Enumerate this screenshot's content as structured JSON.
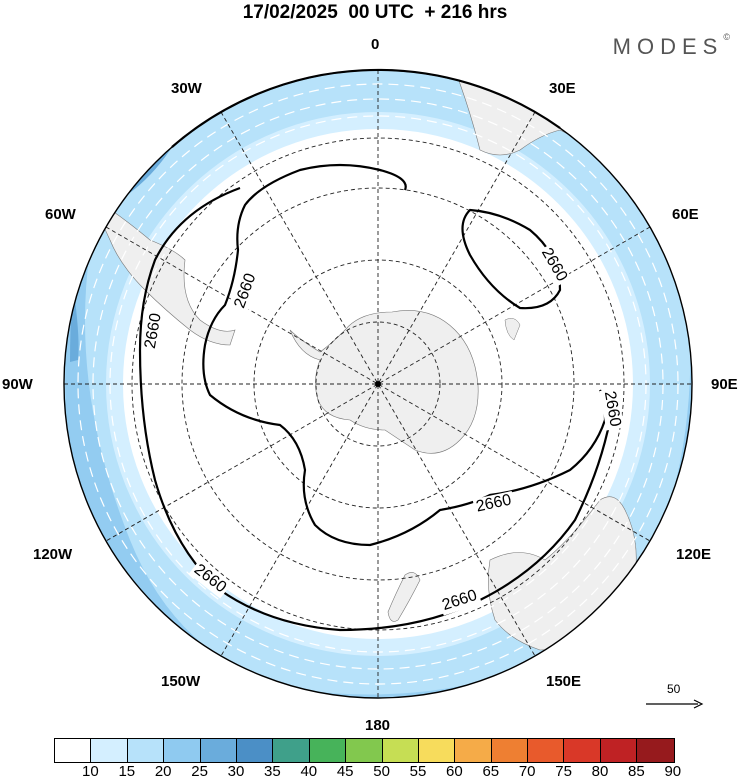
{
  "title": "17/02/2025  00 UTC  + 216 hrs",
  "brand": {
    "text": "MODES",
    "mark": "©"
  },
  "longitude_labels": [
    "0",
    "30E",
    "60E",
    "90E",
    "120E",
    "150E",
    "180",
    "150W",
    "120W",
    "90W",
    "60W",
    "30W"
  ],
  "contours": [
    {
      "value": "2660",
      "labels": [
        "2660",
        "2660",
        "2660",
        "2660",
        "2660",
        "2660",
        "2660"
      ]
    }
  ],
  "reference_vector": {
    "label": "50",
    "icon": "arrow-right-icon"
  },
  "colorbar": {
    "ticks": [
      "10",
      "15",
      "20",
      "25",
      "30",
      "35",
      "40",
      "45",
      "50",
      "55",
      "60",
      "65",
      "70",
      "75",
      "80",
      "85",
      "90"
    ],
    "colors": [
      "#ffffff",
      "#d4efff",
      "#b7e2fa",
      "#8fcaf0",
      "#6aacdc",
      "#4b8fc6",
      "#3fa08a",
      "#47b35a",
      "#82c84e",
      "#c6de54",
      "#f7dc5c",
      "#f5ab48",
      "#ee7f32",
      "#e85a2c",
      "#d93828",
      "#bf2224",
      "#961a1d"
    ]
  },
  "colors": {
    "land": "#efefef",
    "jet_weak": "#d4efff",
    "jet_mid": "#b7e2fa",
    "jet_strong": "#8fcaf0",
    "jet_core": "#6aacdc"
  }
}
